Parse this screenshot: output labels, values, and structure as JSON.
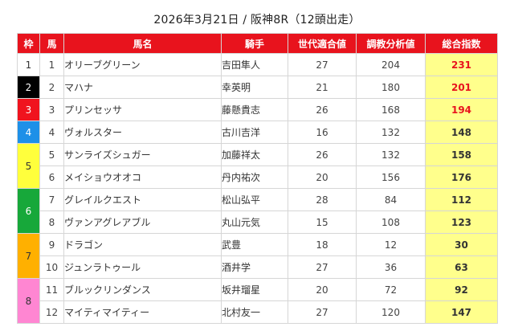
{
  "title": "2026年3月21日 / 阪神8R（12頭出走）",
  "headers": [
    "枠",
    "馬",
    "馬名",
    "騎手",
    "世代適合値",
    "調教分析値",
    "総合指数"
  ],
  "rows": [
    {
      "waku": "1",
      "uma": "1",
      "name": "オリーブグリーン",
      "jockey": "吉田隼人",
      "sedai": "27",
      "chokyo": "204",
      "score": "231"
    },
    {
      "waku": "2",
      "uma": "2",
      "name": "マハナ",
      "jockey": "幸英明",
      "sedai": "21",
      "chokyo": "180",
      "score": "201"
    },
    {
      "waku": "3",
      "uma": "3",
      "name": "プリンセッサ",
      "jockey": "藤懸貴志",
      "sedai": "26",
      "chokyo": "168",
      "score": "194"
    },
    {
      "waku": "4",
      "uma": "4",
      "name": "ヴォルスター",
      "jockey": "古川吉洋",
      "sedai": "16",
      "chokyo": "132",
      "score": "148"
    },
    {
      "waku": "5",
      "uma": "5",
      "name": "サンライズシュガー",
      "jockey": "加藤祥太",
      "sedai": "26",
      "chokyo": "132",
      "score": "158"
    },
    {
      "waku": "5",
      "uma": "6",
      "name": "メイショウオオコ",
      "jockey": "丹内祐次",
      "sedai": "20",
      "chokyo": "156",
      "score": "176"
    },
    {
      "waku": "6",
      "uma": "7",
      "name": "グレイルクエスト",
      "jockey": "松山弘平",
      "sedai": "28",
      "chokyo": "84",
      "score": "112"
    },
    {
      "waku": "6",
      "uma": "8",
      "name": "ヴァンアグレアブル",
      "jockey": "丸山元気",
      "sedai": "15",
      "chokyo": "108",
      "score": "123"
    },
    {
      "waku": "7",
      "uma": "9",
      "name": "ドラゴン",
      "jockey": "武豊",
      "sedai": "18",
      "chokyo": "12",
      "score": "30"
    },
    {
      "waku": "7",
      "uma": "10",
      "name": "ジュンラトゥール",
      "jockey": "酒井学",
      "sedai": "27",
      "chokyo": "36",
      "score": "63"
    },
    {
      "waku": "8",
      "uma": "11",
      "name": "ブルックリンダンス",
      "jockey": "坂井瑠星",
      "sedai": "20",
      "chokyo": "72",
      "score": "92"
    },
    {
      "waku": "8",
      "uma": "12",
      "name": "マイティマイティー",
      "jockey": "北村友一",
      "sedai": "27",
      "chokyo": "120",
      "score": "147"
    }
  ],
  "colors": {
    "header_bg": "#e8131d",
    "score_bg": "#ffff8c",
    "top_score_text": "#e8131d",
    "waku": {
      "1": "#ffffff",
      "2": "#000000",
      "3": "#f0131e",
      "4": "#1e90e8",
      "5": "#ffff3c",
      "6": "#17a83a",
      "7": "#ffb000",
      "8": "#ff86d2"
    }
  }
}
